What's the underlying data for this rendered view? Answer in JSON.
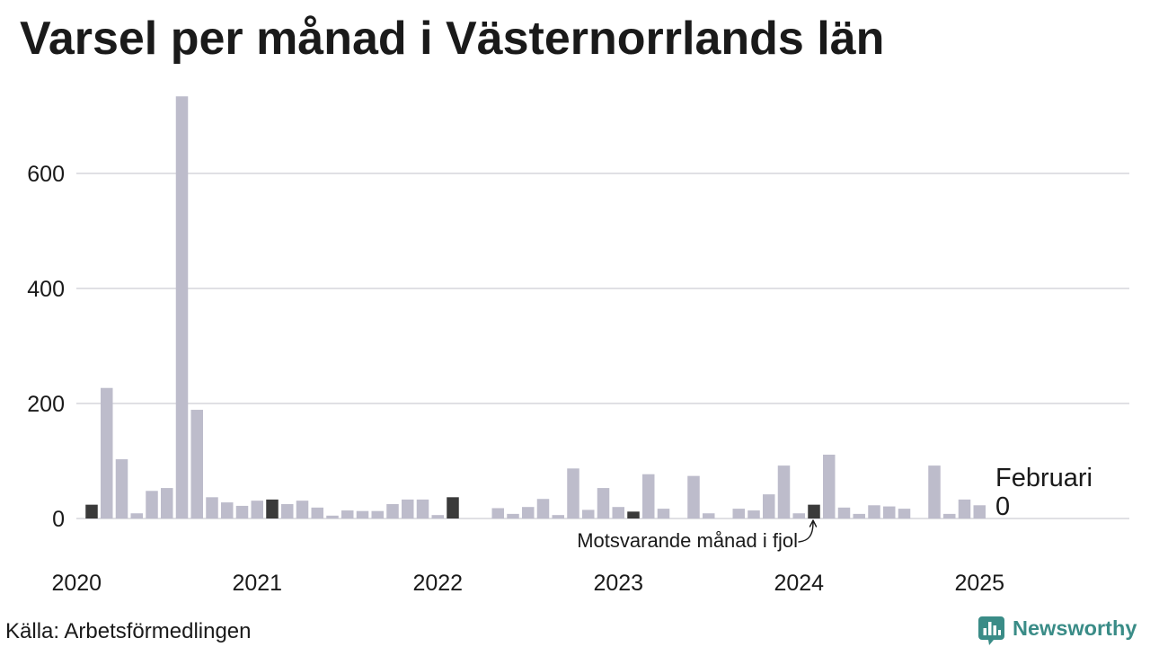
{
  "source": "Källa: Arbetsförmedlingen",
  "brand": {
    "name": "Newsworthy",
    "icon": "newsworthy-logo-icon"
  },
  "colors": {
    "bar": "#bdbccb",
    "highlight": "#3a3a3a",
    "grid": "#e0e0e4",
    "text": "#1a1a1a",
    "brand": "#3a8c87"
  },
  "chart_data": {
    "type": "bar",
    "title": "Varsel per månad i Västernorrlands län",
    "xlabel": "",
    "ylabel": "",
    "grid": true,
    "x_ticks": [
      "2020",
      "2021",
      "2022",
      "2023",
      "2024",
      "2025"
    ],
    "y_ticks": [
      0,
      200,
      400,
      600
    ],
    "highlight_month": 2,
    "annotations": {
      "latest_month": "Februari",
      "previous_year": "Motsvarande månad i fjol"
    },
    "categories": [
      "2020-02",
      "2020-03",
      "2020-04",
      "2020-05",
      "2020-06",
      "2020-07",
      "2020-08",
      "2020-09",
      "2020-10",
      "2020-11",
      "2020-12",
      "2021-01",
      "2021-02",
      "2021-03",
      "2021-04",
      "2021-05",
      "2021-06",
      "2021-07",
      "2021-08",
      "2021-09",
      "2021-10",
      "2021-11",
      "2021-12",
      "2022-01",
      "2022-02",
      "2022-03",
      "2022-04",
      "2022-05",
      "2022-06",
      "2022-07",
      "2022-08",
      "2022-09",
      "2022-10",
      "2022-11",
      "2022-12",
      "2023-01",
      "2023-02",
      "2023-03",
      "2023-04",
      "2023-05",
      "2023-06",
      "2023-07",
      "2023-08",
      "2023-09",
      "2023-10",
      "2023-11",
      "2023-12",
      "2024-01",
      "2024-02",
      "2024-03",
      "2024-04",
      "2024-05",
      "2024-06",
      "2024-07",
      "2024-08",
      "2024-09",
      "2024-10",
      "2024-11",
      "2024-12",
      "2025-01",
      "2025-02"
    ],
    "values": [
      24,
      227,
      103,
      9,
      48,
      53,
      734,
      189,
      37,
      28,
      22,
      31,
      33,
      25,
      31,
      19,
      5,
      14,
      13,
      13,
      25,
      33,
      33,
      6,
      37,
      0,
      0,
      18,
      8,
      20,
      34,
      6,
      87,
      15,
      53,
      20,
      12,
      77,
      17,
      0,
      74,
      9,
      0,
      17,
      14,
      42,
      92,
      9,
      24,
      111,
      19,
      8,
      23,
      21,
      17,
      0,
      92,
      8,
      33,
      23,
      0
    ]
  }
}
